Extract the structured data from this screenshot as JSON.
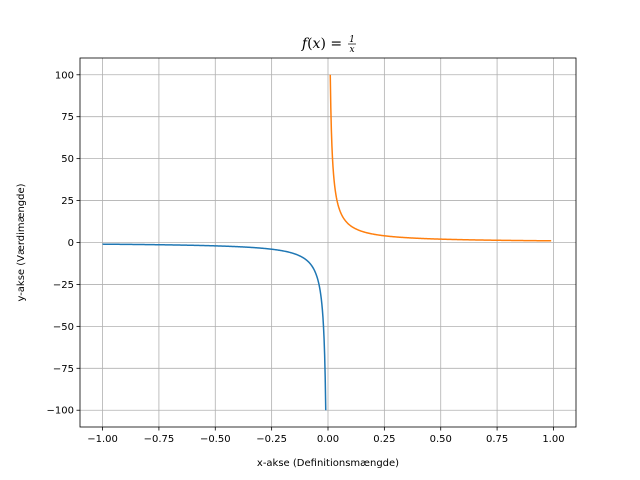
{
  "chart_data": {
    "type": "line",
    "title": {
      "func": "f",
      "arg": "x",
      "equals": "=",
      "numerator": "1",
      "denominator": "x"
    },
    "xlabel": "x-akse (Definitionsmængde)",
    "ylabel": "y-akse (Værdimængde)",
    "xlim": [
      -1.1,
      1.1
    ],
    "ylim": [
      -110,
      110
    ],
    "xticks": [
      -1.0,
      -0.75,
      -0.5,
      -0.25,
      0.0,
      0.25,
      0.5,
      0.75,
      1.0
    ],
    "xtick_labels": [
      "−1.00",
      "−0.75",
      "−0.50",
      "−0.25",
      "0.00",
      "0.25",
      "0.50",
      "0.75",
      "1.00"
    ],
    "yticks": [
      -100,
      -75,
      -50,
      -25,
      0,
      25,
      50,
      75,
      100
    ],
    "ytick_labels": [
      "−100",
      "−75",
      "−50",
      "−25",
      "0",
      "25",
      "50",
      "75",
      "100"
    ],
    "grid": true,
    "series": [
      {
        "function": "1/x",
        "x_range": [
          -1.0,
          -0.01
        ],
        "color": "#1f77b4"
      },
      {
        "function": "1/x",
        "x_range": [
          0.01,
          0.99
        ],
        "color": "#ff7f0e"
      }
    ]
  }
}
